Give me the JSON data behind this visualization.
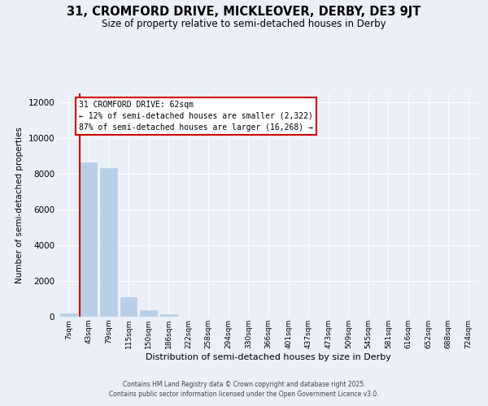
{
  "title_line1": "31, CROMFORD DRIVE, MICKLEOVER, DERBY, DE3 9JT",
  "title_line2": "Size of property relative to semi-detached houses in Derby",
  "xlabel": "Distribution of semi-detached houses by size in Derby",
  "ylabel": "Number of semi-detached properties",
  "categories": [
    "7sqm",
    "43sqm",
    "79sqm",
    "115sqm",
    "150sqm",
    "186sqm",
    "222sqm",
    "258sqm",
    "294sqm",
    "330sqm",
    "366sqm",
    "401sqm",
    "437sqm",
    "473sqm",
    "509sqm",
    "545sqm",
    "581sqm",
    "616sqm",
    "652sqm",
    "688sqm",
    "724sqm"
  ],
  "values": [
    200,
    8650,
    8300,
    1100,
    350,
    120,
    0,
    0,
    0,
    0,
    0,
    0,
    0,
    0,
    0,
    0,
    0,
    0,
    0,
    0,
    0
  ],
  "bar_color": "#b8cfe8",
  "bar_edgecolor": "#b8cfe8",
  "vline_color": "#cc0000",
  "vline_pos": 0.575,
  "ylim_max": 12500,
  "yticks": [
    0,
    2000,
    4000,
    6000,
    8000,
    10000,
    12000
  ],
  "background_color": "#eaeff8",
  "grid_color": "#ffffff",
  "annotation_title": "31 CROMFORD DRIVE: 62sqm",
  "annotation_line2": "← 12% of semi-detached houses are smaller (2,322)",
  "annotation_line3": "87% of semi-detached houses are larger (16,268) →",
  "footer_line1": "Contains HM Land Registry data © Crown copyright and database right 2025.",
  "footer_line2": "Contains public sector information licensed under the Open Government Licence v3.0."
}
